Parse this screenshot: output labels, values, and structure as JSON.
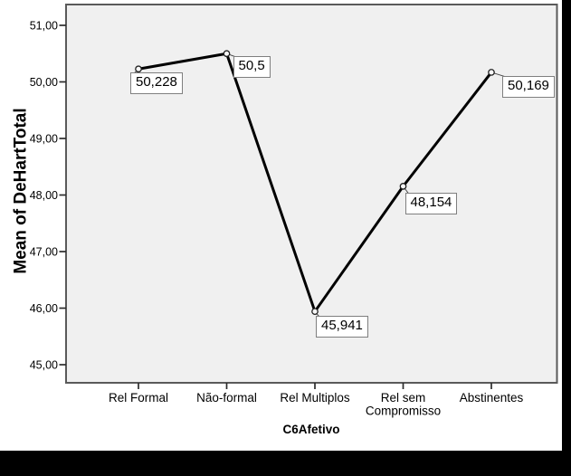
{
  "chart_data": {
    "type": "line",
    "title": "",
    "xlabel": "C6Afetivo",
    "ylabel": "Mean of DeHartTotal",
    "categories": [
      {
        "label": "Rel Formal",
        "lines": [
          "Rel Formal"
        ]
      },
      {
        "label": "Não-formal",
        "lines": [
          "Não-formal"
        ]
      },
      {
        "label": "Rel Multiplos",
        "lines": [
          "Rel Multiplos"
        ]
      },
      {
        "label": "Rel sem Compromisso",
        "lines": [
          "Rel sem",
          "Compromisso"
        ]
      },
      {
        "label": "Abstinentes",
        "lines": [
          "Abstinentes"
        ]
      }
    ],
    "values": [
      50.228,
      50.5,
      45.941,
      48.154,
      50.169
    ],
    "point_labels": [
      "50,228",
      "50,5",
      "45,941",
      "48,154",
      "50,169"
    ],
    "y_ticks": [
      {
        "value": 51,
        "label": "51,00"
      },
      {
        "value": 50,
        "label": "50,00"
      },
      {
        "value": 49,
        "label": "49,00"
      },
      {
        "value": 48,
        "label": "48,00"
      },
      {
        "value": 47,
        "label": "47,00"
      },
      {
        "value": 46,
        "label": "46,00"
      },
      {
        "value": 45,
        "label": "45,00"
      }
    ],
    "ylim": [
      44.68,
      51.37
    ],
    "grid": false,
    "legend": "none",
    "decimal_separator": ",",
    "colors": {
      "plot_bg": "#f0f0f0",
      "frame": "#5a5a5a",
      "tick": "#2b2b2b",
      "series_line": "#000000",
      "marker_fill": "#f8f8f8",
      "marker_stroke": "#1f1f1f",
      "leader": "#444444",
      "label_box_bg": "#ffffff",
      "label_box_border": "#7f7f7f",
      "page_bg": "#ffffff",
      "surround": "#000000"
    }
  }
}
